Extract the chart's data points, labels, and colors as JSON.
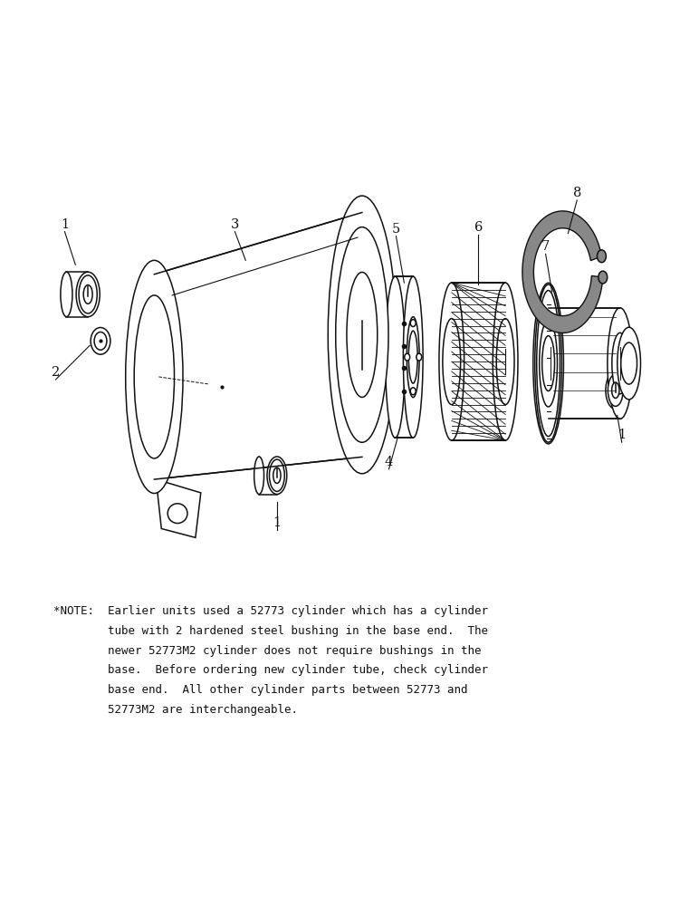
{
  "background_color": "#ffffff",
  "black": "#111111",
  "note_lines": [
    "*NOTE:  Earlier units used a 52773 cylinder which has a cylinder",
    "        tube with 2 hardened steel bushing in the base end.  The",
    "        newer 52773M2 cylinder does not require bushings in the",
    "        base.  Before ordering new cylinder tube, check cylinder",
    "        base end.  All other cylinder parts between 52773 and",
    "        52773M2 are interchangeable."
  ],
  "note_fontsize": 9.0,
  "label_fontsize": 10.5,
  "font_family": "DejaVu Sans Mono"
}
